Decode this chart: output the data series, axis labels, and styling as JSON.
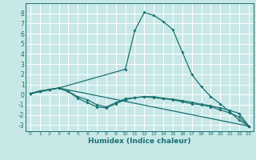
{
  "title": "",
  "xlabel": "Humidex (Indice chaleur)",
  "bg_color": "#c8e8e8",
  "grid_color": "#ffffff",
  "line_color": "#1a7070",
  "xlim": [
    -0.5,
    23.5
  ],
  "ylim": [
    -3.6,
    9.0
  ],
  "xticks": [
    0,
    1,
    2,
    3,
    4,
    5,
    6,
    7,
    8,
    9,
    10,
    11,
    12,
    13,
    14,
    15,
    16,
    17,
    18,
    19,
    20,
    21,
    22,
    23
  ],
  "yticks": [
    -3,
    -2,
    -1,
    0,
    1,
    2,
    3,
    4,
    5,
    6,
    7,
    8
  ],
  "line1_x": [
    0,
    1,
    2,
    3,
    10,
    11,
    12,
    13,
    14,
    15,
    16,
    17,
    18,
    19,
    20,
    21,
    22,
    23
  ],
  "line1_y": [
    0.1,
    0.35,
    0.5,
    0.65,
    2.5,
    6.3,
    8.1,
    7.8,
    7.2,
    6.4,
    4.2,
    2.0,
    0.8,
    -0.2,
    -0.9,
    -1.7,
    -2.5,
    -3.1
  ],
  "line2_x": [
    0,
    1,
    2,
    3,
    4,
    5,
    6,
    7,
    8,
    9,
    10,
    11,
    12,
    13,
    14,
    15,
    16,
    17,
    18,
    19,
    20,
    21,
    22,
    23
  ],
  "line2_y": [
    0.1,
    0.35,
    0.5,
    0.65,
    0.3,
    -0.2,
    -0.5,
    -1.0,
    -1.2,
    -0.8,
    -0.4,
    -0.3,
    -0.2,
    -0.3,
    -0.4,
    -0.5,
    -0.7,
    -0.9,
    -1.0,
    -1.2,
    -1.5,
    -1.8,
    -2.2,
    -3.1
  ],
  "line3_x": [
    0,
    1,
    2,
    3,
    4,
    5,
    6,
    7,
    8,
    9,
    10,
    11,
    12,
    13,
    14,
    15,
    16,
    17,
    18,
    19,
    20,
    21,
    22,
    23
  ],
  "line3_y": [
    0.1,
    0.35,
    0.5,
    0.65,
    0.3,
    -0.35,
    -0.8,
    -1.2,
    -1.3,
    -0.9,
    -0.5,
    -0.3,
    -0.2,
    -0.2,
    -0.35,
    -0.45,
    -0.6,
    -0.75,
    -0.95,
    -1.1,
    -1.3,
    -1.55,
    -1.85,
    -3.1
  ],
  "line4_x": [
    0,
    3,
    23
  ],
  "line4_y": [
    0.1,
    0.65,
    -3.1
  ]
}
